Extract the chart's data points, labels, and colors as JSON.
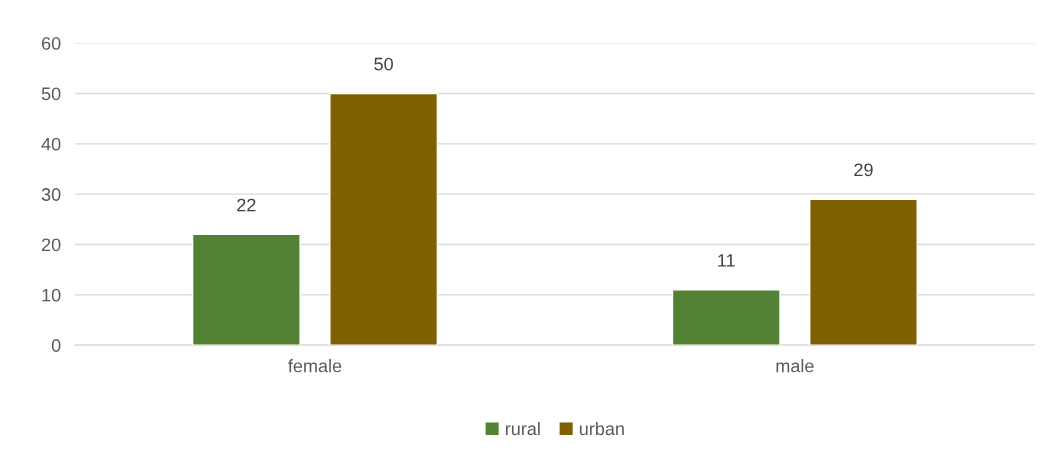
{
  "chart_data": {
    "type": "bar",
    "categories": [
      "female",
      "male"
    ],
    "series": [
      {
        "name": "rural",
        "color": "#548235",
        "values": [
          22,
          11
        ]
      },
      {
        "name": "urban",
        "color": "#7f6000",
        "values": [
          50,
          29
        ]
      }
    ],
    "ylim": [
      0,
      60
    ],
    "yticks": [
      0,
      10,
      20,
      30,
      40,
      50,
      60
    ],
    "grid": "y",
    "legend": "bottom",
    "data_labels": true
  }
}
